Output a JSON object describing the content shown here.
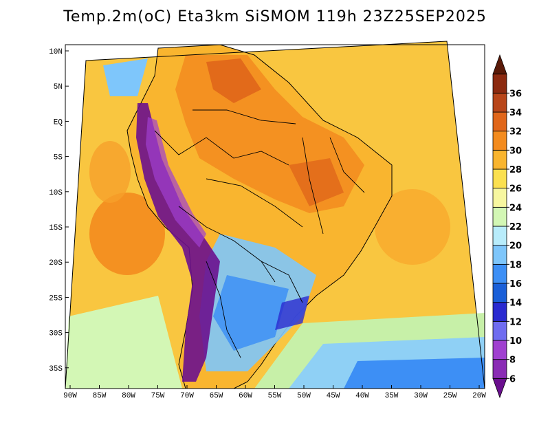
{
  "title": "Temp.2m(oC) Eta3km SiSMOM 119h 23Z25SEP2025",
  "map": {
    "lat_labels": [
      "10N",
      "5N",
      "EQ",
      "5S",
      "10S",
      "15S",
      "20S",
      "25S",
      "30S",
      "35S"
    ],
    "lon_labels": [
      "90W",
      "85W",
      "80W",
      "75W",
      "70W",
      "65W",
      "60W",
      "55W",
      "50W",
      "45W",
      "40W",
      "35W",
      "30W",
      "25W",
      "20W"
    ]
  },
  "colorbar": {
    "labels": [
      "6",
      "8",
      "10",
      "12",
      "14",
      "16",
      "18",
      "20",
      "22",
      "24",
      "26",
      "28",
      "30",
      "32",
      "34",
      "36"
    ],
    "colors": [
      "#6a0f8e",
      "#8a2bb5",
      "#a040d0",
      "#6f6cf0",
      "#2a2ad0",
      "#1a5fd8",
      "#3d8ff5",
      "#7ec6fb",
      "#b8ecfb",
      "#d3f7b5",
      "#f7f7a0",
      "#fbe04f",
      "#f9b52f",
      "#f38b1e",
      "#e0661a",
      "#b8461a",
      "#8c2a10",
      "#5a1a08"
    ]
  }
}
